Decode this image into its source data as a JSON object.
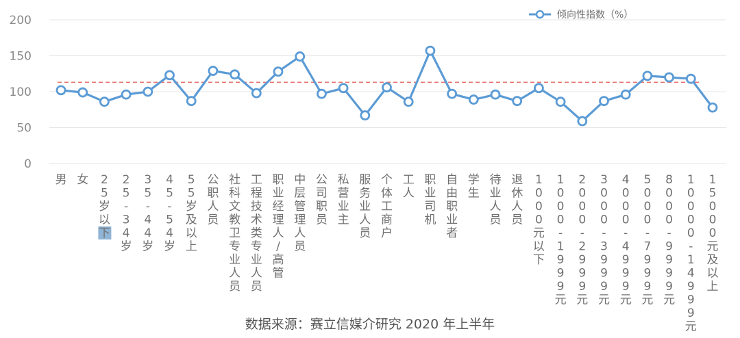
{
  "chart_data": {
    "type": "line",
    "categories": [
      "男",
      "女",
      "25岁以下",
      "25-34岁",
      "35-44岁",
      "45-54岁",
      "55岁及以上",
      "公职人员",
      "社科文教卫专业人员",
      "工程技术类专业人员",
      "职业经理人/高管",
      "中层管理人员",
      "公司职员",
      "私营业主",
      "服务业人员",
      "个体工商户",
      "工人",
      "职业司机",
      "自由职业者",
      "学生",
      "待业人员",
      "退休人员",
      "1000元以下",
      "1000-1999元",
      "2000-2999元",
      "3000-3999元",
      "4000-4999元",
      "5000-7999元",
      "8000-9999元",
      "10000-14999元",
      "15000元及以上"
    ],
    "series": [
      {
        "name": "倾向性指数（%）",
        "values": [
          102,
          99,
          86,
          96,
          100,
          123,
          87,
          129,
          124,
          98,
          128,
          149,
          97,
          105,
          67,
          106,
          86,
          157,
          97,
          89,
          96,
          87,
          105,
          86,
          59,
          87,
          96,
          122,
          120,
          118,
          78
        ]
      }
    ],
    "reference_line": 113,
    "ylim": [
      0,
      200
    ],
    "yticks": [
      "0",
      "50",
      "100",
      "150",
      "200"
    ],
    "grid": "horizontal",
    "legend": "top-right",
    "colors": {
      "line": "#5b9bd5",
      "marker_fill": "#ffffff",
      "reference": "#e8736f",
      "grid": "#e6e6e6"
    }
  },
  "source_note": "数据来源：赛立信媒介研究 2020 年上半年"
}
